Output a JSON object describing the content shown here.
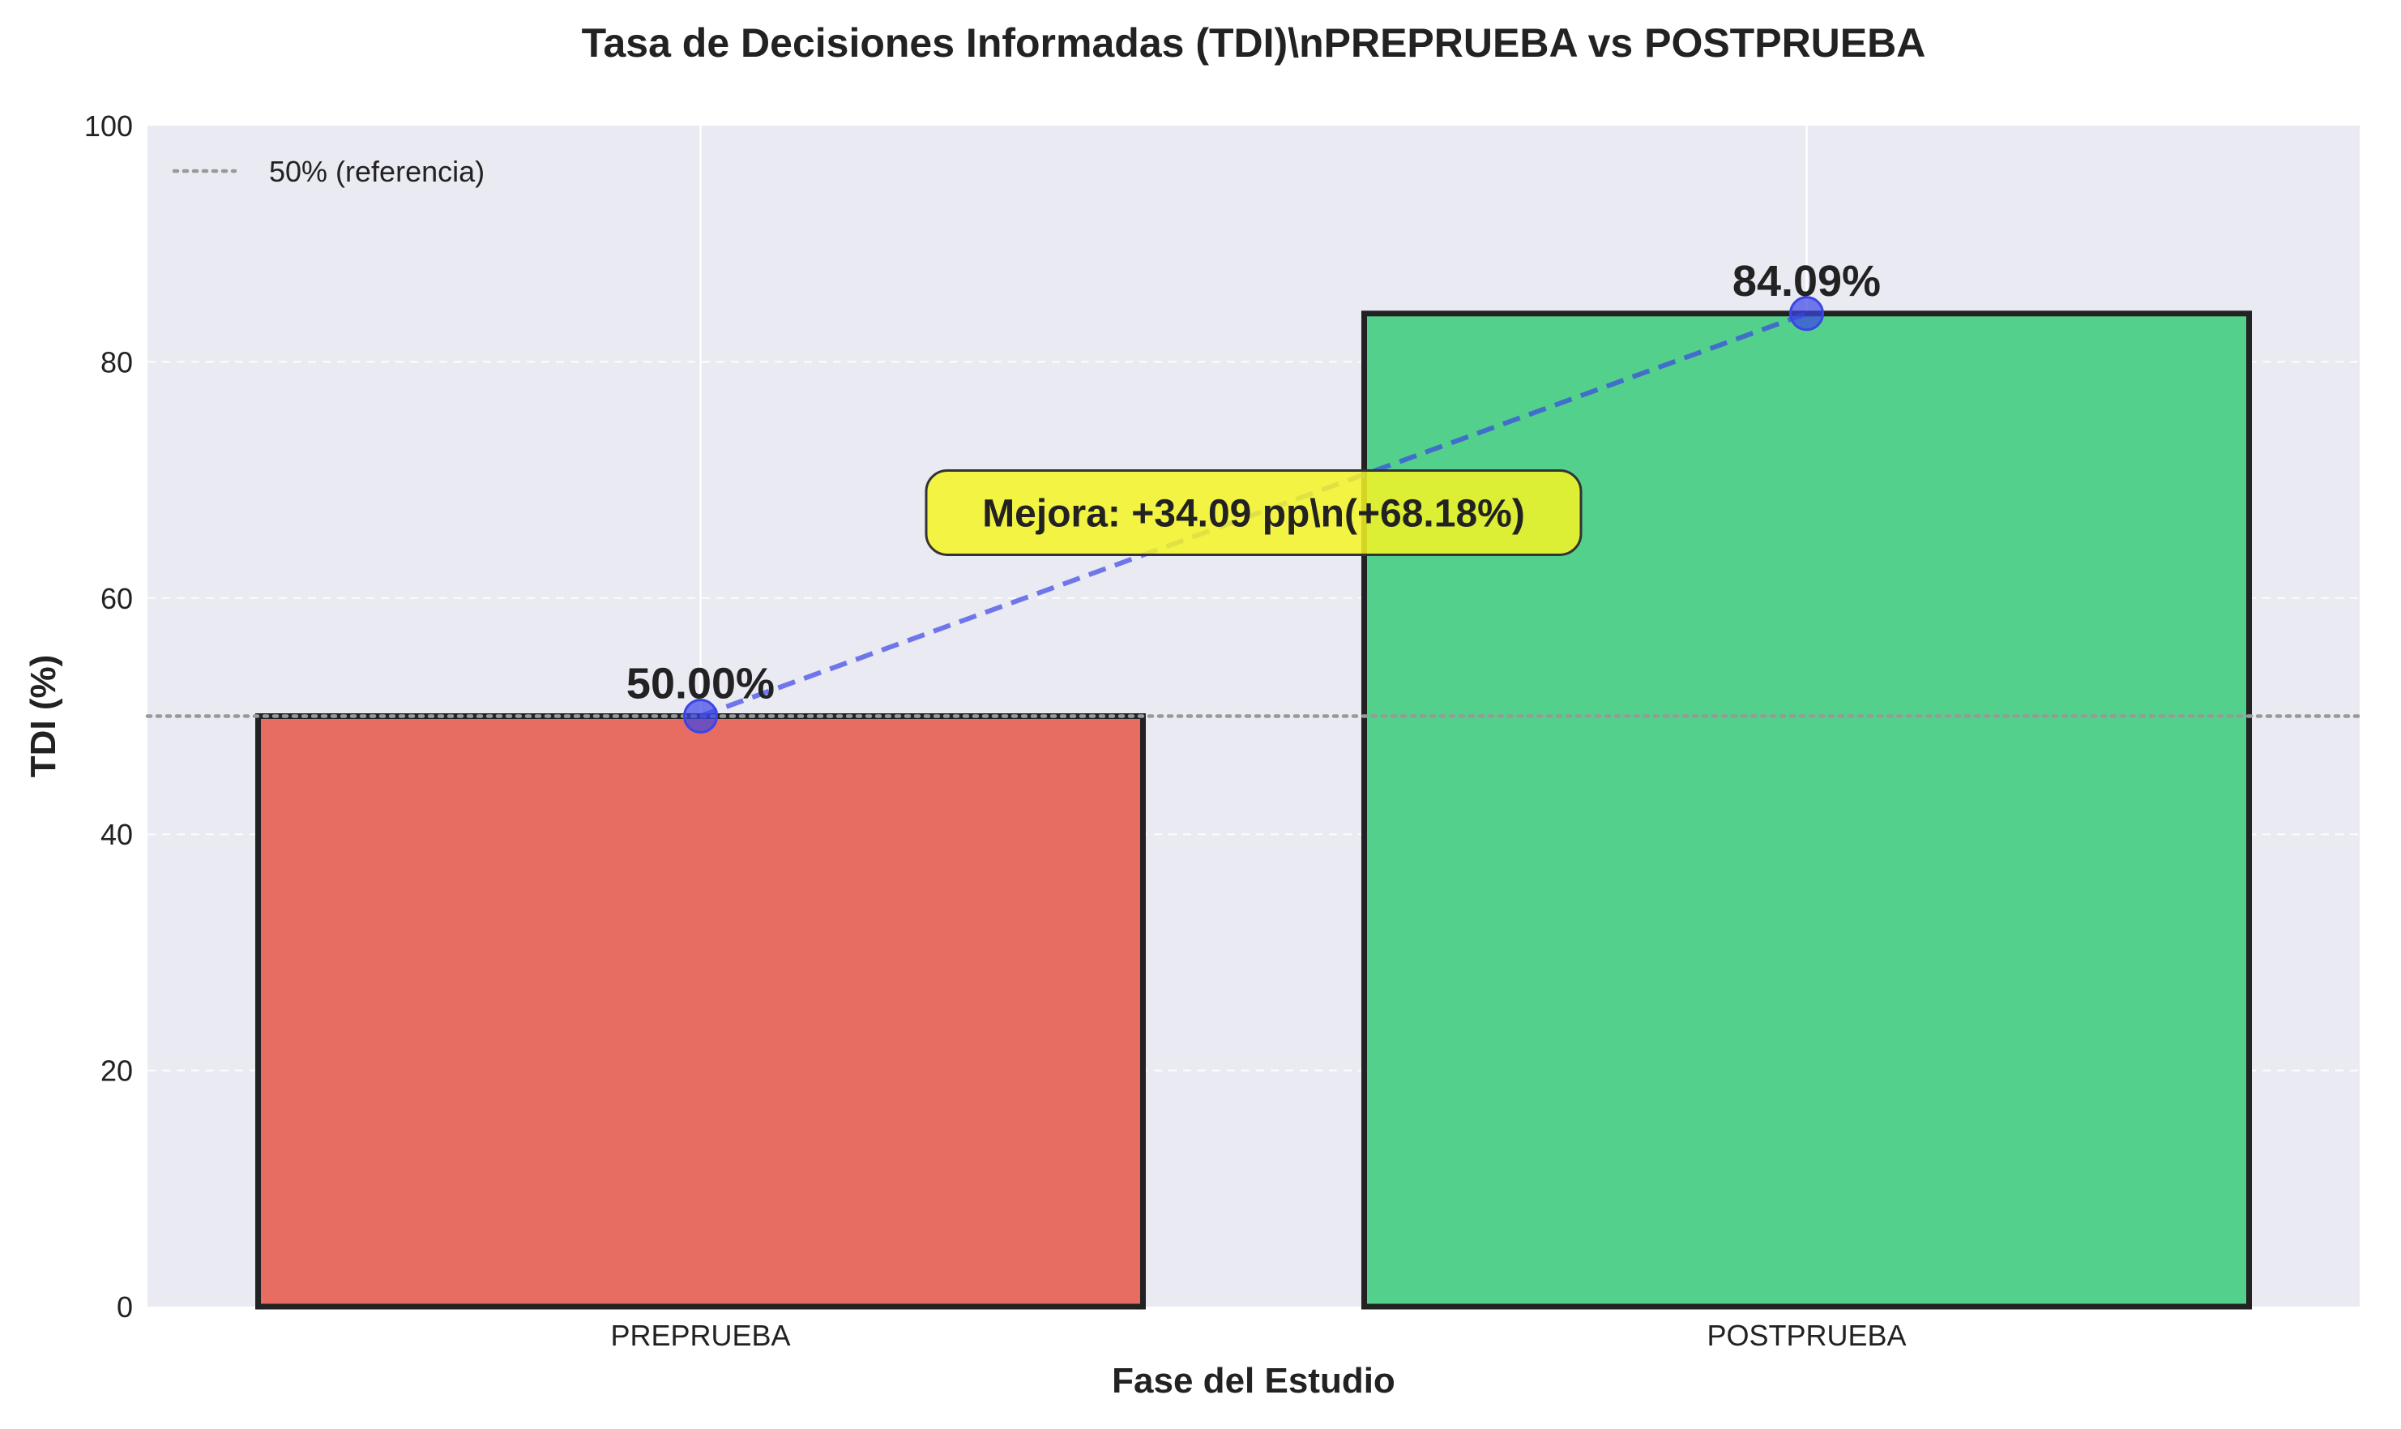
{
  "chart_data": {
    "type": "bar",
    "title": "Tasa de Decisiones Informadas (TDI)\\nPREPRUEBA vs POSTPRUEBA",
    "xlabel": "Fase del Estudio",
    "ylabel": "TDI (%)",
    "categories": [
      "PREPRUEBA",
      "POSTPRUEBA"
    ],
    "values": [
      50.0,
      84.09
    ],
    "value_labels": [
      "50.00%",
      "84.09%"
    ],
    "bar_colors": [
      "#e76c62",
      "#53d08b"
    ],
    "ylim": [
      0,
      100
    ],
    "yticks": [
      0,
      20,
      40,
      60,
      80,
      100
    ],
    "grid": true,
    "reference_line": {
      "value": 50,
      "label": "50% (referencia)",
      "color": "#999999"
    },
    "legend_position": "top-left",
    "connector_line": {
      "color": "#3b45e6",
      "style": "dashed"
    },
    "annotation": {
      "text": "Mejora: +34.09 pp\\n(+68.18%)",
      "background": "#f5f525"
    },
    "background_color": "#eaeaf2"
  }
}
